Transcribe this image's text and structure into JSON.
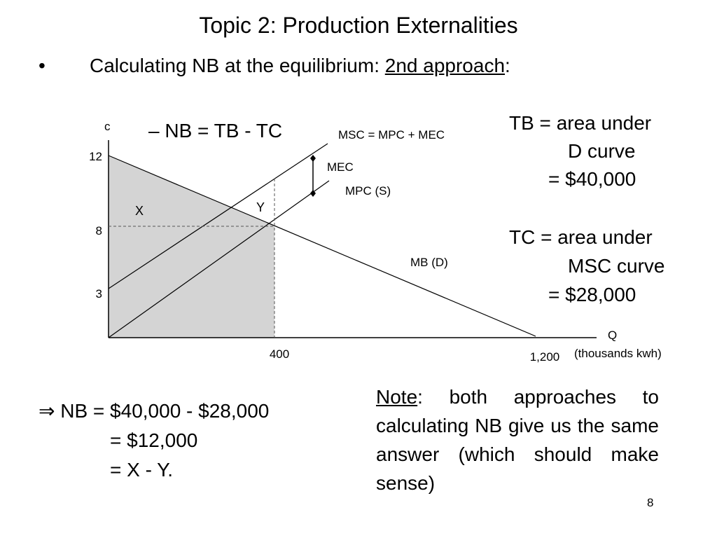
{
  "header": {
    "title": "Topic 2: Production Externalities"
  },
  "bullet": {
    "marker": "•",
    "text": "Calculating NB at the equilibrium: ",
    "emphasis": "2nd approach",
    "tail": ":"
  },
  "diagram": {
    "formula": "–   NB = TB - TC",
    "y_axis_label": "c",
    "x_axis_label": "Q",
    "x_axis_unit": "(thousands kwh)",
    "y_ticks": [
      "12",
      "8",
      "3"
    ],
    "x_ticks": [
      "400",
      "1,200"
    ],
    "curves": {
      "msc": "MSC = MPC + MEC",
      "mec": "MEC",
      "mpc": "MPC (S)",
      "mb": "MB (D)"
    },
    "areas": {
      "x": "X",
      "y": "Y"
    }
  },
  "tb": {
    "lines": [
      "TB = area under",
      "D curve",
      "= $40,000"
    ]
  },
  "tc": {
    "lines": [
      "TC = area under",
      "MSC curve",
      "= $28,000"
    ]
  },
  "conclusion": {
    "lines": [
      "⇒ NB = $40,000 - $28,000",
      "= $12,000",
      "= X - Y."
    ]
  },
  "note": {
    "label": "Note",
    "text": ": both approaches to calculating NB give us the same answer (which should make sense)"
  },
  "page_number": "8"
}
